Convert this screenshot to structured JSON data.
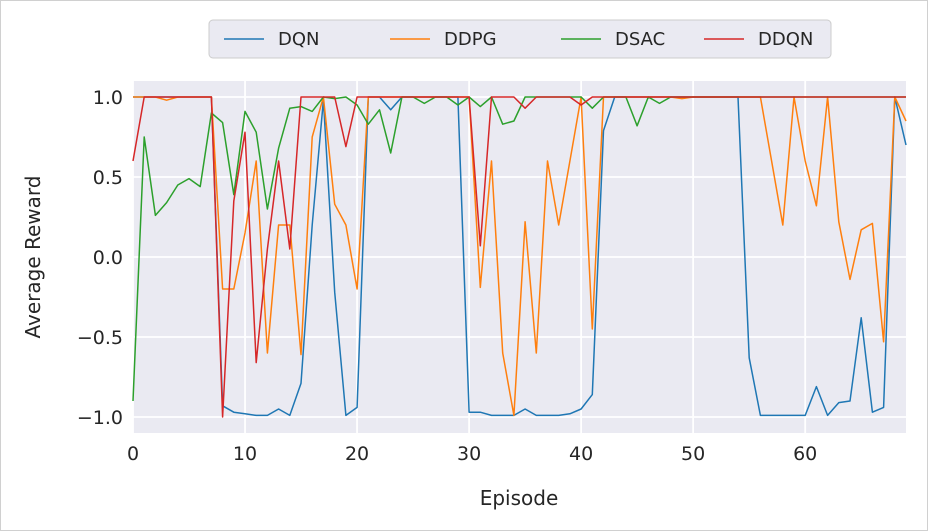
{
  "chart_data": {
    "type": "line",
    "title": "",
    "xlabel": "Episode",
    "ylabel": "Average Reward",
    "xlim": [
      0,
      69
    ],
    "ylim": [
      -1.1,
      1.1
    ],
    "xticks": [
      0,
      10,
      20,
      30,
      40,
      50,
      60
    ],
    "yticks": [
      1.0,
      0.5,
      0.0,
      -0.5,
      -1.0
    ],
    "xtick_labels": [
      "0",
      "10",
      "20",
      "30",
      "40",
      "50",
      "60"
    ],
    "ytick_labels": [
      "1.0",
      "0.5",
      "0.0",
      "−0.5",
      "−1.0"
    ],
    "grid": true,
    "legend_position": "top-center",
    "background": "#eaeaf2",
    "x": [
      0,
      1,
      2,
      3,
      4,
      5,
      6,
      7,
      8,
      9,
      10,
      11,
      12,
      13,
      14,
      15,
      16,
      17,
      18,
      19,
      20,
      21,
      22,
      23,
      24,
      25,
      26,
      27,
      28,
      29,
      30,
      31,
      32,
      33,
      34,
      35,
      36,
      37,
      38,
      39,
      40,
      41,
      42,
      43,
      44,
      45,
      46,
      47,
      48,
      49,
      50,
      51,
      52,
      53,
      54,
      55,
      56,
      57,
      58,
      59,
      60,
      61,
      62,
      63,
      64,
      65,
      66,
      67,
      68,
      69
    ],
    "series": [
      {
        "name": "DQN",
        "color": "#1f77b4",
        "values": [
          1.0,
          1.0,
          1.0,
          1.0,
          1.0,
          1.0,
          1.0,
          1.0,
          -0.93,
          -0.97,
          -0.98,
          -0.99,
          -0.99,
          -0.95,
          -0.99,
          -0.79,
          0.2,
          0.98,
          -0.22,
          -0.99,
          -0.94,
          1.0,
          1.0,
          0.92,
          1.0,
          1.0,
          1.0,
          1.0,
          1.0,
          1.0,
          -0.97,
          -0.97,
          -0.99,
          -0.99,
          -0.99,
          -0.95,
          -0.99,
          -0.99,
          -0.99,
          -0.98,
          -0.95,
          -0.86,
          0.79,
          1.0,
          1.0,
          1.0,
          1.0,
          1.0,
          1.0,
          1.0,
          1.0,
          1.0,
          1.0,
          1.0,
          1.0,
          -0.63,
          -0.99,
          -0.99,
          -0.99,
          -0.99,
          -0.99,
          -0.81,
          -0.99,
          -0.91,
          -0.9,
          -0.38,
          -0.97,
          -0.94,
          1.0,
          0.7
        ]
      },
      {
        "name": "DDPG",
        "color": "#ff7f0e",
        "values": [
          1.0,
          1.0,
          1.0,
          0.98,
          1.0,
          1.0,
          1.0,
          1.0,
          -0.2,
          -0.2,
          0.15,
          0.6,
          -0.6,
          0.2,
          0.2,
          -0.61,
          0.75,
          1.0,
          0.33,
          0.2,
          -0.2,
          1.0,
          1.0,
          1.0,
          1.0,
          1.0,
          1.0,
          1.0,
          1.0,
          1.0,
          1.0,
          -0.19,
          0.6,
          -0.6,
          -0.99,
          0.22,
          -0.6,
          0.6,
          0.2,
          0.6,
          1.0,
          -0.45,
          1.0,
          1.0,
          1.0,
          1.0,
          1.0,
          1.0,
          1.0,
          0.99,
          1.0,
          1.0,
          1.0,
          1.0,
          1.0,
          1.0,
          1.0,
          0.6,
          0.2,
          1.0,
          0.6,
          0.32,
          1.0,
          0.22,
          -0.14,
          0.17,
          0.21,
          -0.53,
          1.0,
          0.85
        ]
      },
      {
        "name": "DSAC",
        "color": "#2ca02c",
        "values": [
          -0.9,
          0.75,
          0.26,
          0.34,
          0.45,
          0.49,
          0.44,
          0.9,
          0.84,
          0.39,
          0.91,
          0.78,
          0.3,
          0.68,
          0.93,
          0.94,
          0.91,
          1.0,
          0.99,
          1.0,
          0.95,
          0.83,
          0.92,
          0.65,
          1.0,
          1.0,
          0.96,
          1.0,
          1.0,
          0.95,
          1.0,
          0.94,
          1.0,
          0.83,
          0.85,
          1.0,
          1.0,
          1.0,
          1.0,
          1.0,
          1.0,
          0.93,
          1.0,
          1.0,
          1.0,
          0.82,
          1.0,
          0.96,
          1.0,
          1.0,
          1.0,
          1.0,
          1.0,
          1.0,
          1.0,
          1.0,
          1.0,
          1.0,
          1.0,
          1.0,
          1.0,
          1.0,
          1.0,
          1.0,
          1.0,
          1.0,
          1.0,
          1.0,
          1.0,
          1.0
        ]
      },
      {
        "name": "DDQN",
        "color": "#d62728",
        "values": [
          0.6,
          1.0,
          1.0,
          1.0,
          1.0,
          1.0,
          1.0,
          1.0,
          -1.0,
          0.35,
          0.78,
          -0.66,
          0.05,
          0.6,
          0.05,
          1.0,
          1.0,
          1.0,
          1.0,
          0.69,
          1.0,
          1.0,
          1.0,
          1.0,
          1.0,
          1.0,
          1.0,
          1.0,
          1.0,
          1.0,
          1.0,
          0.07,
          1.0,
          1.0,
          1.0,
          0.93,
          1.0,
          1.0,
          1.0,
          1.0,
          0.95,
          1.0,
          1.0,
          1.0,
          1.0,
          1.0,
          1.0,
          1.0,
          1.0,
          1.0,
          1.0,
          1.0,
          1.0,
          1.0,
          1.0,
          1.0,
          1.0,
          1.0,
          1.0,
          1.0,
          1.0,
          1.0,
          1.0,
          1.0,
          1.0,
          1.0,
          1.0,
          1.0,
          1.0,
          1.0
        ]
      }
    ]
  }
}
